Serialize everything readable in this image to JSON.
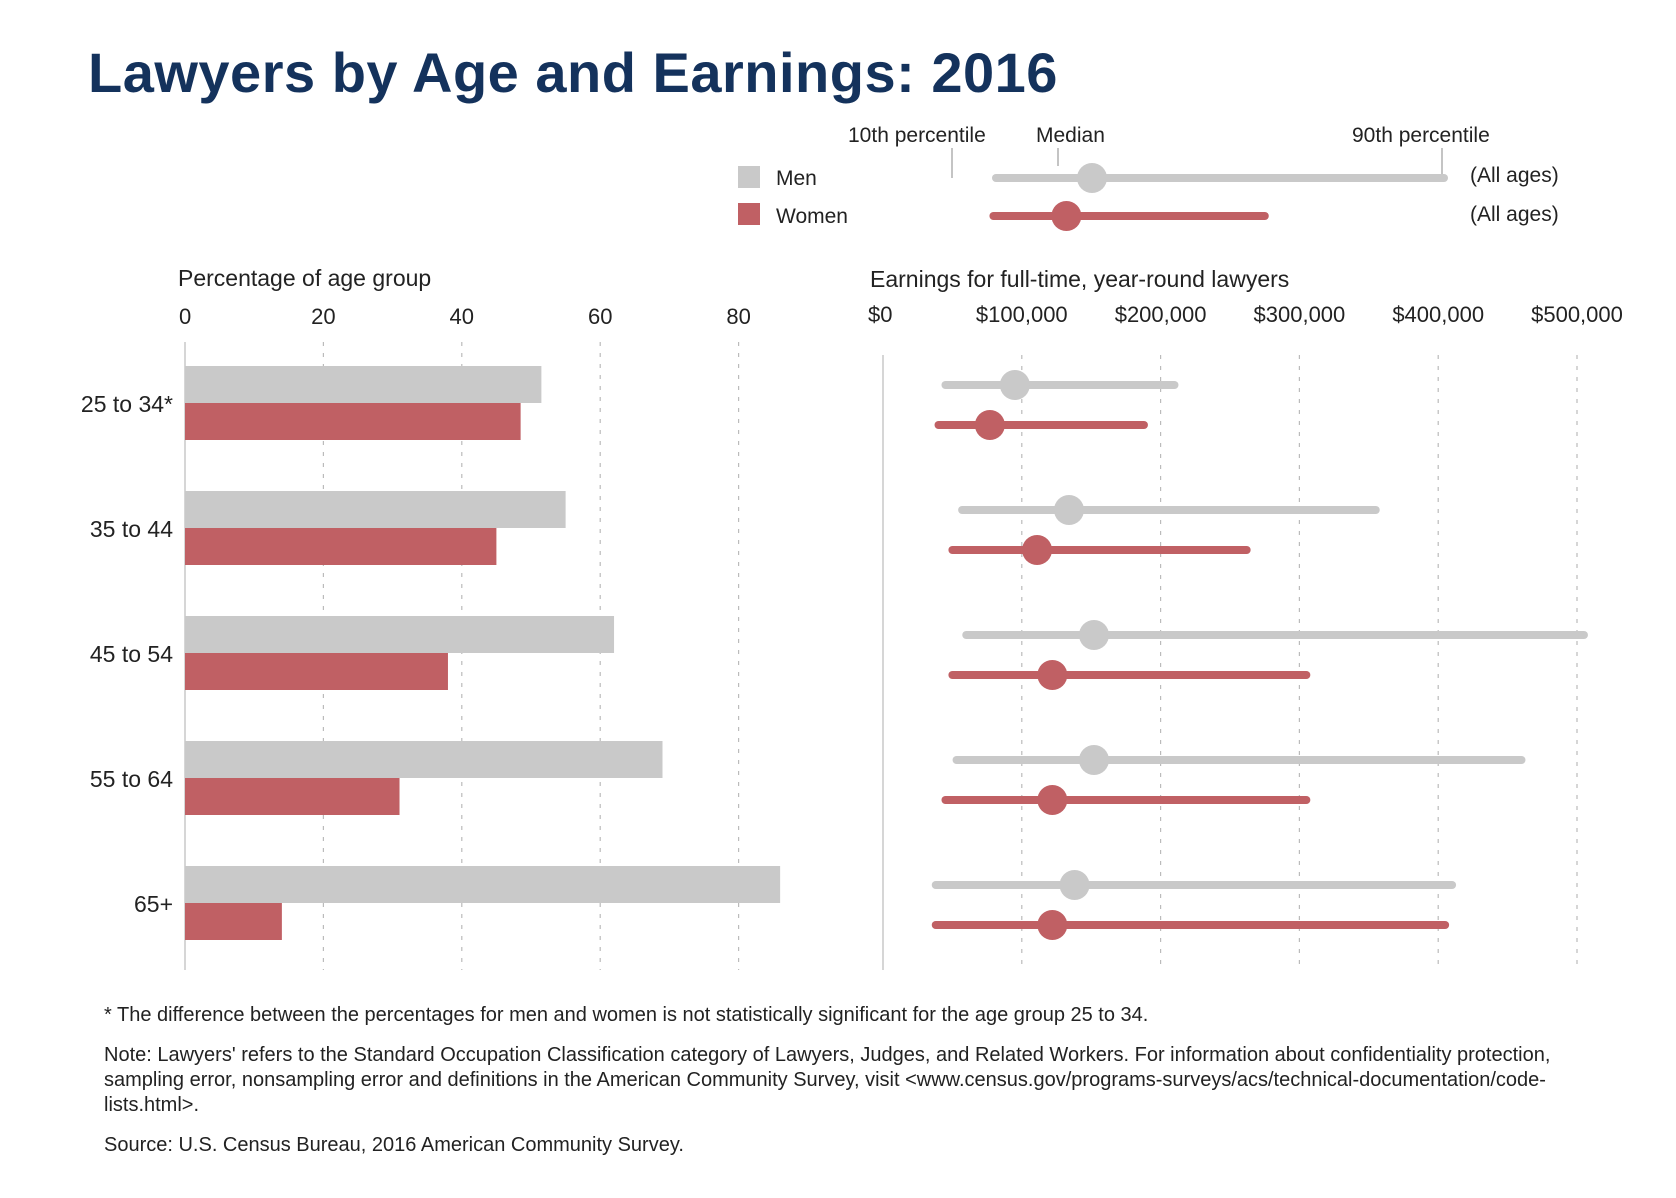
{
  "title": "Lawyers by Age and Earnings: 2016",
  "colors": {
    "men": "#c9c9c9",
    "women": "#c06064",
    "title": "#14325c",
    "grid": "#bbbbbb"
  },
  "legend": {
    "men_label": "Men",
    "women_label": "Women",
    "p10_label": "10th percentile",
    "median_label": "Median",
    "p90_label": "90th percentile",
    "all_ages_label": "(All ages)",
    "men_all_ages": {
      "p10": 50000,
      "median": 125000,
      "p90": 400000
    },
    "women_all_ages": {
      "p10": 48000,
      "median": 105000,
      "p90": 260000
    }
  },
  "chart_data": [
    {
      "type": "bar",
      "title": "Percentage of age group",
      "categories": [
        "25 to 34*",
        "35 to 44",
        "45 to 54",
        "55 to 64",
        "65+"
      ],
      "series": [
        {
          "name": "Men",
          "values": [
            51.5,
            55,
            62,
            69,
            86
          ]
        },
        {
          "name": "Women",
          "values": [
            48.5,
            45,
            38,
            31,
            14
          ]
        }
      ],
      "xlim": [
        0,
        90
      ],
      "xticks": [
        "0",
        "20",
        "40",
        "60",
        "80"
      ],
      "grid": true
    },
    {
      "type": "range",
      "title": "Earnings for full-time, year-round lawyers",
      "categories": [
        "25 to 34*",
        "35 to 44",
        "45 to 54",
        "55 to 64",
        "65+"
      ],
      "series": [
        {
          "name": "Men",
          "p10": [
            45000,
            57000,
            60000,
            53000,
            38000
          ],
          "median": [
            95000,
            134000,
            152000,
            152000,
            138000
          ],
          "p90": [
            210000,
            355000,
            505000,
            460000,
            410000
          ]
        },
        {
          "name": "Women",
          "p10": [
            40000,
            50000,
            50000,
            45000,
            38000
          ],
          "median": [
            77000,
            111000,
            122000,
            122000,
            122000
          ],
          "p90": [
            188000,
            262000,
            305000,
            305000,
            405000
          ]
        }
      ],
      "xlim": [
        0,
        510000
      ],
      "xticks": [
        "$0",
        "$100,000",
        "$200,000",
        "$300,000",
        "$400,000",
        "$500,000"
      ],
      "grid": true
    }
  ],
  "footnotes": {
    "asterisk": "* The difference between the percentages for men and women is not statistically significant for the age group 25 to 34.",
    "note": "Note: Lawyers' refers to the Standard Occupation Classification category of Lawyers, Judges, and Related Workers. For information about confidentiality protection, sampling error, nonsampling error and definitions in the American Community Survey, visit <www.census.gov/programs-surveys/acs/technical-documentation/code-lists.html>.",
    "source": "Source: U.S. Census Bureau, 2016 American Community Survey."
  }
}
